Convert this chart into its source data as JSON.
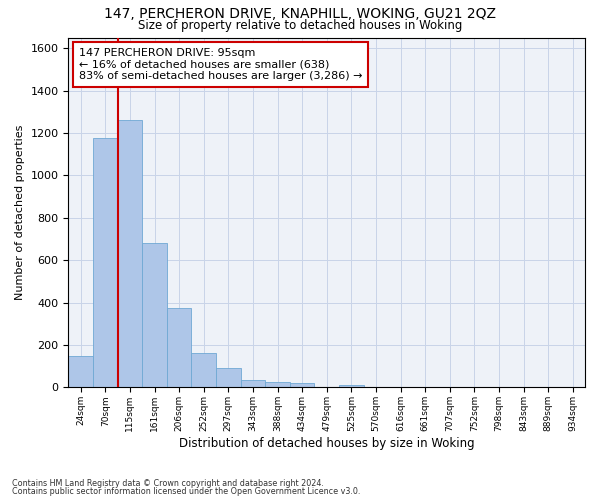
{
  "title1": "147, PERCHERON DRIVE, KNAPHILL, WOKING, GU21 2QZ",
  "title2": "Size of property relative to detached houses in Woking",
  "xlabel": "Distribution of detached houses by size in Woking",
  "ylabel": "Number of detached properties",
  "bar_values": [
    148,
    1175,
    1260,
    680,
    375,
    160,
    90,
    35,
    25,
    20,
    0,
    12,
    0,
    0,
    0,
    0,
    0,
    0,
    0,
    0,
    0
  ],
  "categories": [
    "24sqm",
    "70sqm",
    "115sqm",
    "161sqm",
    "206sqm",
    "252sqm",
    "297sqm",
    "343sqm",
    "388sqm",
    "434sqm",
    "479sqm",
    "525sqm",
    "570sqm",
    "616sqm",
    "661sqm",
    "707sqm",
    "752sqm",
    "798sqm",
    "843sqm",
    "889sqm",
    "934sqm"
  ],
  "bar_color": "#aec6e8",
  "bar_edge_color": "#6fa8d4",
  "vline_color": "#cc0000",
  "annotation_text": "147 PERCHERON DRIVE: 95sqm\n← 16% of detached houses are smaller (638)\n83% of semi-detached houses are larger (3,286) →",
  "annotation_box_color": "#ffffff",
  "annotation_box_edge": "#cc0000",
  "ylim": [
    0,
    1650
  ],
  "yticks": [
    0,
    200,
    400,
    600,
    800,
    1000,
    1200,
    1400,
    1600
  ],
  "grid_color": "#c8d4e8",
  "bg_color": "#eef2f8",
  "footer1": "Contains HM Land Registry data © Crown copyright and database right 2024.",
  "footer2": "Contains public sector information licensed under the Open Government Licence v3.0."
}
